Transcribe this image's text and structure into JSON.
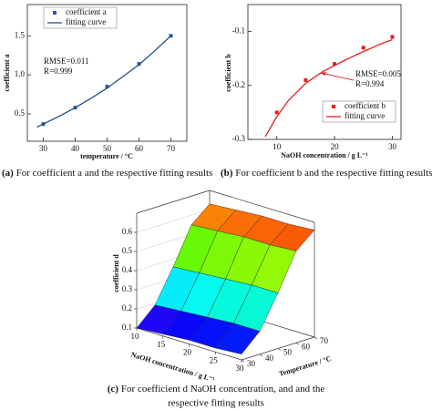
{
  "chart_data": [
    {
      "type": "scatter",
      "xlabel": "temperature / °C",
      "ylabel": "coefficient a",
      "xlim": [
        25,
        75
      ],
      "ylim": [
        0.15,
        1.9
      ],
      "xticks": [
        30,
        40,
        50,
        60,
        70
      ],
      "yticks": [
        0.5,
        {
          "value": 1,
          "label": "1.0"
        },
        1.5
      ],
      "series": [
        {
          "name": "coefficient a",
          "color": "#2a5fa8",
          "marker": "square",
          "x": [
            30,
            40,
            50,
            60,
            70
          ],
          "values": [
            0.37,
            0.58,
            0.85,
            1.14,
            1.5
          ]
        },
        {
          "name": "fitting curve",
          "color": "#1f4e8c",
          "marker": "line",
          "x": [
            28,
            35,
            40,
            45,
            50,
            55,
            60,
            65,
            70
          ],
          "values": [
            0.33,
            0.47,
            0.58,
            0.7,
            0.83,
            0.98,
            1.13,
            1.31,
            1.5
          ]
        }
      ],
      "annotations": [
        "RMSE=0.011",
        "R=0.999"
      ],
      "legend": "upper left",
      "caption": {
        "label": "(a)",
        "text": " For coefficient a and the respective fitting results"
      }
    },
    {
      "type": "scatter",
      "xlabel": "NaOH concentration / g L⁻¹",
      "ylabel": "coefficient b",
      "xlim": [
        5,
        31.5
      ],
      "ylim": [
        -0.3,
        -0.05
      ],
      "xticks": [
        10,
        20,
        30
      ],
      "yticks": [
        -0.3,
        -0.2,
        -0.1
      ],
      "series": [
        {
          "name": "coefficient b",
          "color": "#e02020",
          "marker": "square",
          "x": [
            10,
            15,
            20,
            25,
            30
          ],
          "values": [
            -0.25,
            -0.19,
            -0.16,
            -0.13,
            -0.11
          ]
        },
        {
          "name": "fitting curve",
          "color": "#e02020",
          "marker": "line",
          "x": [
            8,
            10,
            12,
            15,
            18,
            20,
            22,
            25,
            28,
            30
          ],
          "values": [
            -0.295,
            -0.258,
            -0.228,
            -0.196,
            -0.174,
            -0.163,
            -0.152,
            -0.137,
            -0.123,
            -0.115
          ]
        }
      ],
      "annotations": [
        "RMSE=0.005",
        "R=0.994"
      ],
      "legend": "lower right",
      "caption": {
        "label": "(b)",
        "text": " For coefficient b and the respective fitting results"
      }
    },
    {
      "type": "surface",
      "xlabel": "NaOH concentration / g L⁻¹",
      "ylabel": "Temperature / °C",
      "zlabel": "coefficient d",
      "x": [
        10,
        15,
        20,
        25,
        30
      ],
      "y": [
        30,
        40,
        50,
        60,
        70
      ],
      "z": [
        [
          0.1,
          0.19,
          0.36,
          0.55,
          0.63
        ],
        [
          0.11,
          0.2,
          0.37,
          0.56,
          0.64
        ],
        [
          0.12,
          0.21,
          0.38,
          0.57,
          0.65
        ],
        [
          0.12,
          0.22,
          0.39,
          0.57,
          0.65
        ],
        [
          0.13,
          0.22,
          0.39,
          0.58,
          0.66
        ]
      ],
      "xlim": [
        10,
        30
      ],
      "ylim": [
        30,
        70
      ],
      "zlim": [
        0.1,
        0.7
      ],
      "xticks": [
        10,
        15,
        20,
        25,
        30
      ],
      "yticks": [
        30,
        40,
        50,
        60,
        70
      ],
      "zticks": [
        0.1,
        0.2,
        0.3,
        0.4,
        0.5,
        0.6
      ],
      "colormap": "rainbow",
      "caption": {
        "label": "(c)",
        "lines": [
          "For coefficient d NaOH concentration, and and the",
          "respective fitting results"
        ]
      }
    }
  ]
}
